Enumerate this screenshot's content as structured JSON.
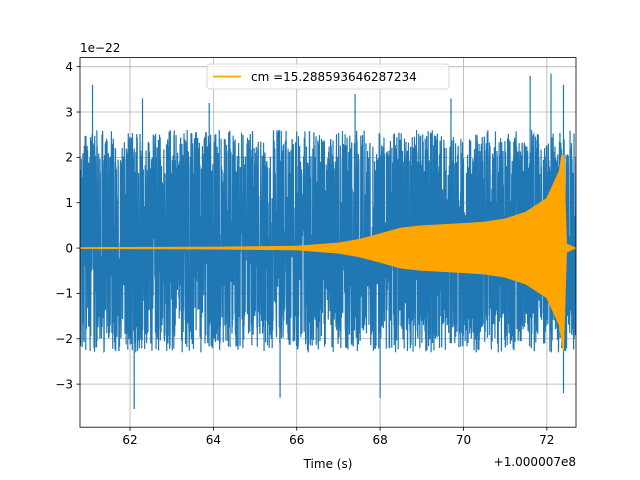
{
  "chart_data": {
    "type": "line",
    "title": "",
    "xlabel": "Time (s)",
    "ylabel": "",
    "x_offset_text": "+1.000007e8",
    "y_scale_text": "1e−22",
    "xlim": [
      60.8,
      72.7
    ],
    "ylim": [
      -3.95,
      4.2
    ],
    "x_ticks": [
      62,
      64,
      66,
      68,
      70,
      72
    ],
    "x_tick_labels": [
      "62",
      "64",
      "66",
      "68",
      "70",
      "72"
    ],
    "y_ticks": [
      -3,
      -2,
      -1,
      0,
      1,
      2,
      3,
      4
    ],
    "y_tick_labels": [
      "−3",
      "−2",
      "−1",
      "0",
      "1",
      "2",
      "3",
      "4"
    ],
    "grid": true,
    "legend_position": "top-center",
    "series": [
      {
        "name": "",
        "kind": "noise",
        "color": "#1f77b4",
        "x_range": [
          60.8,
          72.7
        ],
        "typical_envelope": [
          -2.3,
          2.6
        ],
        "min": -3.55,
        "max": 3.85,
        "peaks": [
          {
            "x": 61.1,
            "y": 3.6
          },
          {
            "x": 62.3,
            "y": 3.3
          },
          {
            "x": 63.9,
            "y": 3.2
          },
          {
            "x": 67.4,
            "y": 3.4
          },
          {
            "x": 69.7,
            "y": 3.3
          },
          {
            "x": 71.6,
            "y": 3.8
          },
          {
            "x": 72.1,
            "y": 3.85
          },
          {
            "x": 72.4,
            "y": 3.6
          },
          {
            "x": 62.1,
            "y": -3.55
          },
          {
            "x": 65.6,
            "y": -3.3
          },
          {
            "x": 68.0,
            "y": -3.3
          },
          {
            "x": 72.4,
            "y": -3.2
          }
        ]
      },
      {
        "name": "cm =15.288593646287234",
        "kind": "chirp",
        "color": "#ffa500",
        "x_range": [
          60.8,
          72.7
        ],
        "merger_time": 72.4,
        "envelope": [
          {
            "x": 60.8,
            "amp": 0.02
          },
          {
            "x": 64.0,
            "amp": 0.03
          },
          {
            "x": 66.0,
            "amp": 0.05
          },
          {
            "x": 67.0,
            "amp": 0.12
          },
          {
            "x": 67.5,
            "amp": 0.2
          },
          {
            "x": 68.0,
            "amp": 0.32
          },
          {
            "x": 68.5,
            "amp": 0.45
          },
          {
            "x": 69.0,
            "amp": 0.5
          },
          {
            "x": 70.0,
            "amp": 0.55
          },
          {
            "x": 70.5,
            "amp": 0.58
          },
          {
            "x": 71.0,
            "amp": 0.65
          },
          {
            "x": 71.5,
            "amp": 0.8
          },
          {
            "x": 72.0,
            "amp": 1.1
          },
          {
            "x": 72.3,
            "amp": 1.7
          },
          {
            "x": 72.4,
            "amp": 2.3
          },
          {
            "x": 72.47,
            "amp": 0.1
          },
          {
            "x": 72.7,
            "amp": 0.0
          }
        ],
        "min": -2.45,
        "max": 2.05
      }
    ]
  }
}
